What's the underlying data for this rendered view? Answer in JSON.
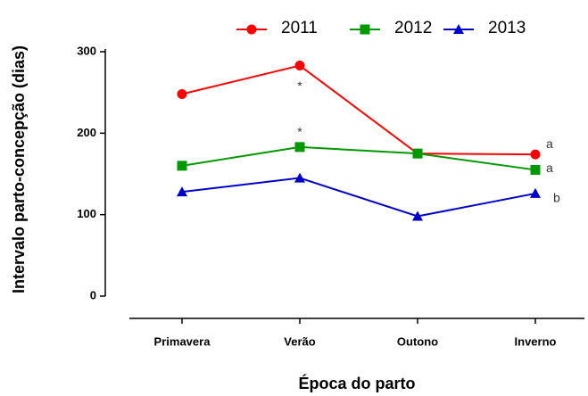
{
  "chart_data": {
    "type": "line",
    "xlabel": "Época do parto",
    "ylabel": "Intervalo parto-concepção (dias)",
    "categories": [
      "Primavera",
      "Verão",
      "Outono",
      "Inverno"
    ],
    "series": [
      {
        "name": "2011",
        "color": "#ff0000",
        "marker": "circle",
        "values": [
          248,
          283,
          175,
          174
        ]
      },
      {
        "name": "2012",
        "color": "#009900",
        "marker": "square",
        "values": [
          160,
          183,
          175,
          155
        ]
      },
      {
        "name": "2013",
        "color": "#0000cc",
        "marker": "triangle",
        "values": [
          128,
          145,
          98,
          126
        ]
      }
    ],
    "ylim": [
      0,
      300
    ],
    "yticks": [
      0,
      100,
      200,
      300
    ],
    "annotations": [
      "*",
      "*",
      "a",
      "a",
      "b"
    ],
    "legend": "top"
  }
}
